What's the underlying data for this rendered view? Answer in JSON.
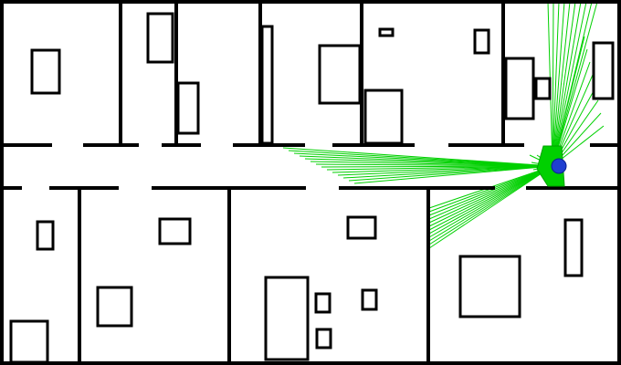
{
  "scene": {
    "background_color": "#ffffff",
    "wall_color": "#000000",
    "laser_color": "#00d000",
    "robot_color": "#1f3fd0"
  },
  "robot": {
    "name": "robot-marker",
    "heading_deg": 180
  },
  "laser_scan": {
    "beam_count": 60,
    "visible": true
  }
}
